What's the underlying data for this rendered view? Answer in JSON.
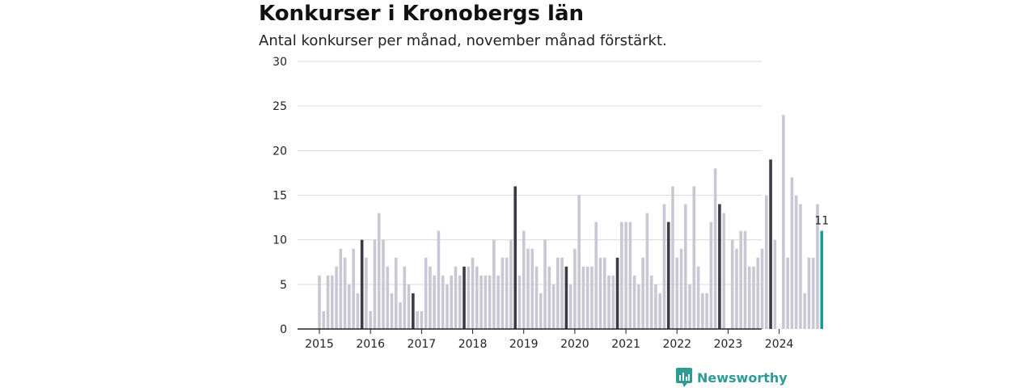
{
  "chart_data": {
    "type": "bar",
    "title": "Konkurser i Kronobergs län",
    "subtitle": "Antal konkurser per månad, november månad förstärkt.",
    "ylim": [
      0,
      30
    ],
    "yticks": [
      0,
      5,
      10,
      15,
      20,
      25,
      30
    ],
    "xticks": [
      "2015",
      "2016",
      "2017",
      "2018",
      "2019",
      "2020",
      "2021",
      "2022",
      "2023",
      "2024"
    ],
    "start": "2015-01",
    "end": "2024-11",
    "values": [
      6,
      2,
      6,
      6,
      7,
      9,
      8,
      5,
      9,
      4,
      10,
      8,
      2,
      10,
      13,
      10,
      7,
      4,
      8,
      3,
      7,
      5,
      4,
      2,
      2,
      8,
      7,
      6,
      11,
      6,
      5,
      6,
      7,
      6,
      7,
      7,
      8,
      7,
      6,
      6,
      6,
      10,
      6,
      8,
      8,
      10,
      16,
      6,
      11,
      9,
      9,
      7,
      4,
      10,
      7,
      5,
      8,
      8,
      7,
      5,
      9,
      15,
      7,
      7,
      7,
      12,
      8,
      8,
      6,
      6,
      8,
      12,
      12,
      12,
      6,
      5,
      8,
      13,
      6,
      5,
      4,
      14,
      12,
      16,
      8,
      9,
      14,
      5,
      16,
      7,
      4,
      4,
      12,
      18,
      14,
      13,
      0,
      10,
      9,
      11,
      11,
      7,
      7,
      8,
      9,
      15,
      19,
      10,
      0,
      24,
      8,
      17,
      15,
      14,
      4,
      8,
      8,
      14,
      11
    ],
    "highlight_month": "november",
    "last_value_label": "11",
    "colors": {
      "regular": "#c8c7d3",
      "november": "#3c3b47",
      "latest": "#1a9c94",
      "grid": "#d9d9d9",
      "axis": "#222222"
    }
  },
  "brand": {
    "name": "Newsworthy",
    "icon": "newsworthy-logo-icon",
    "color": "#2f9b96"
  }
}
